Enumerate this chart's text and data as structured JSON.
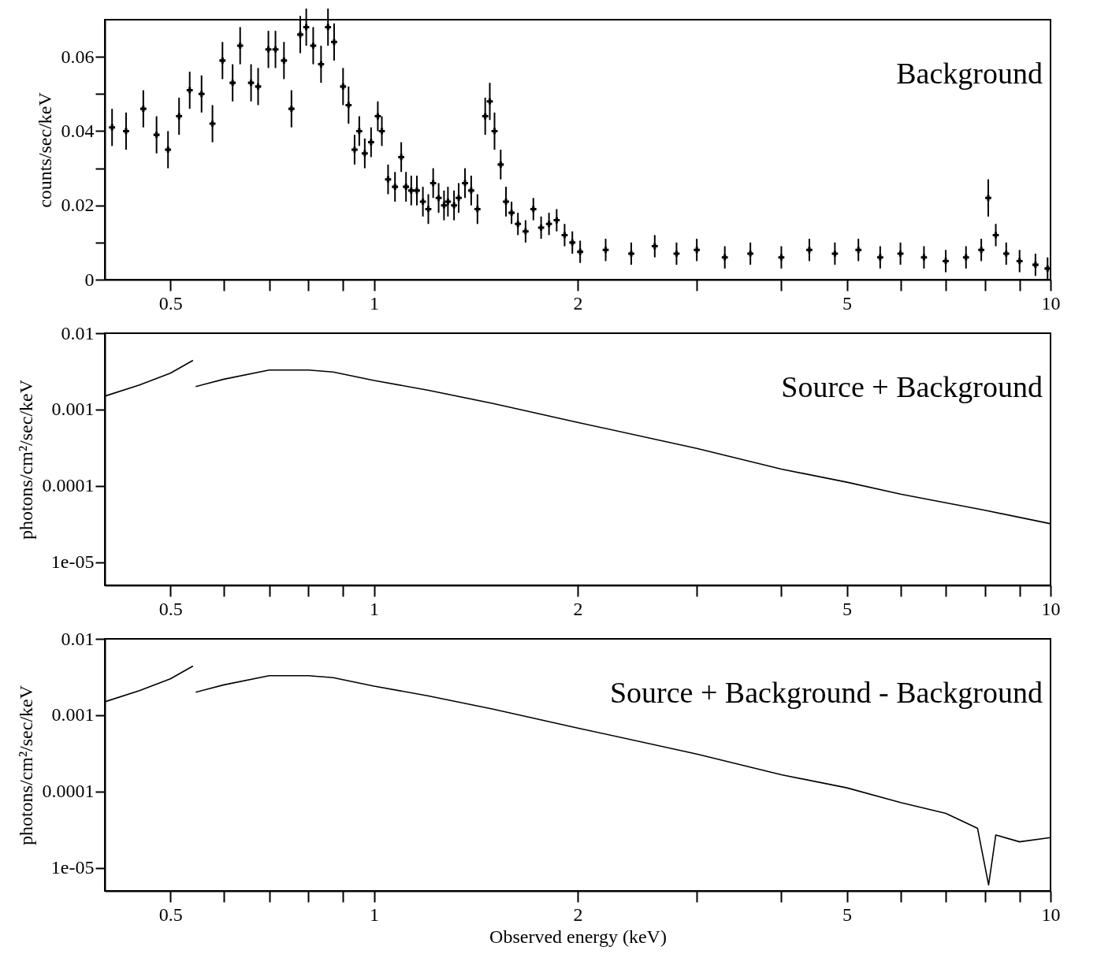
{
  "chart_data": [
    {
      "type": "scatter",
      "ylabel": "counts/sec/keV",
      "annotations": [
        "Background"
      ],
      "log": "x",
      "marker": "cross",
      "xlim": [
        0.4,
        10
      ],
      "ylim": [
        0,
        0.07
      ],
      "xticks": [
        {
          "value": 0.5,
          "label": "0.5"
        },
        {
          "value": 0.6,
          "label": null
        },
        {
          "value": 0.7,
          "label": null
        },
        {
          "value": 0.8,
          "label": null
        },
        {
          "value": 0.9,
          "label": null
        },
        1,
        2,
        {
          "value": 3,
          "label": null
        },
        {
          "value": 4,
          "label": null
        },
        5,
        {
          "value": 6,
          "label": null
        },
        {
          "value": 7,
          "label": null
        },
        {
          "value": 8,
          "label": null
        },
        {
          "value": 9,
          "label": null
        },
        10
      ],
      "yticks": [
        0,
        {
          "value": 0.01,
          "label": null
        },
        {
          "value": 0.02,
          "label": "0.02"
        },
        {
          "value": 0.03,
          "label": null
        },
        {
          "value": 0.04,
          "label": "0.04"
        },
        {
          "value": 0.05,
          "label": null
        },
        {
          "value": 0.06,
          "label": "0.06"
        }
      ],
      "series": [
        {
          "color": "#000000",
          "x": [
            0.41,
            0.43,
            0.456,
            0.477,
            0.496,
            0.515,
            0.534,
            0.556,
            0.577,
            0.597,
            0.618,
            0.634,
            0.658,
            0.674,
            0.698,
            0.715,
            0.736,
            0.755,
            0.778,
            0.794,
            0.813,
            0.835,
            0.855,
            0.873,
            0.9,
            0.917,
            0.936,
            0.951,
            0.969,
            0.99,
            1.013,
            1.027,
            1.049,
            1.074,
            1.097,
            1.115,
            1.135,
            1.157,
            1.181,
            1.203,
            1.223,
            1.246,
            1.269,
            1.286,
            1.313,
            1.334,
            1.363,
            1.392,
            1.422,
            1.46,
            1.483,
            1.507,
            1.539,
            1.567,
            1.597,
            1.632,
            1.675,
            1.72,
            1.766,
            1.814,
            1.862,
            1.913,
            1.964,
            2.017,
            2.2,
            2.4,
            2.6,
            2.8,
            3.0,
            3.3,
            3.6,
            4.0,
            4.4,
            4.8,
            5.2,
            5.6,
            6.0,
            6.5,
            7.0,
            7.5,
            7.9,
            8.09,
            8.3,
            8.6,
            9.0,
            9.5,
            9.9
          ],
          "values": [
            0.041,
            0.04,
            0.046,
            0.039,
            0.035,
            0.044,
            0.051,
            0.05,
            0.042,
            0.059,
            0.053,
            0.063,
            0.053,
            0.052,
            0.062,
            0.062,
            0.059,
            0.046,
            0.066,
            0.068,
            0.063,
            0.058,
            0.068,
            0.064,
            0.052,
            0.047,
            0.035,
            0.04,
            0.034,
            0.037,
            0.044,
            0.04,
            0.027,
            0.025,
            0.033,
            0.025,
            0.024,
            0.024,
            0.021,
            0.019,
            0.026,
            0.022,
            0.02,
            0.021,
            0.02,
            0.022,
            0.026,
            0.024,
            0.019,
            0.044,
            0.048,
            0.04,
            0.031,
            0.021,
            0.018,
            0.015,
            0.013,
            0.019,
            0.014,
            0.015,
            0.016,
            0.012,
            0.01,
            0.0075,
            0.008,
            0.007,
            0.009,
            0.007,
            0.008,
            0.006,
            0.007,
            0.006,
            0.008,
            0.007,
            0.008,
            0.006,
            0.007,
            0.006,
            0.005,
            0.006,
            0.008,
            0.022,
            0.012,
            0.007,
            0.005,
            0.004,
            0.003
          ],
          "errors": [
            0.005,
            0.005,
            0.005,
            0.005,
            0.005,
            0.005,
            0.005,
            0.005,
            0.005,
            0.005,
            0.005,
            0.005,
            0.005,
            0.005,
            0.005,
            0.005,
            0.005,
            0.005,
            0.005,
            0.005,
            0.005,
            0.005,
            0.005,
            0.005,
            0.005,
            0.005,
            0.004,
            0.004,
            0.004,
            0.004,
            0.004,
            0.004,
            0.004,
            0.004,
            0.004,
            0.004,
            0.004,
            0.004,
            0.004,
            0.004,
            0.004,
            0.004,
            0.004,
            0.004,
            0.004,
            0.004,
            0.004,
            0.004,
            0.004,
            0.005,
            0.005,
            0.005,
            0.004,
            0.004,
            0.003,
            0.003,
            0.003,
            0.003,
            0.003,
            0.003,
            0.003,
            0.003,
            0.003,
            0.003,
            0.003,
            0.003,
            0.003,
            0.003,
            0.003,
            0.003,
            0.003,
            0.003,
            0.003,
            0.003,
            0.003,
            0.003,
            0.003,
            0.003,
            0.003,
            0.003,
            0.003,
            0.005,
            0.003,
            0.003,
            0.003,
            0.003,
            0.003
          ]
        }
      ]
    },
    {
      "type": "line",
      "ylabel": "photons/cm²/sec/keV",
      "annotations": [
        "Source + Background"
      ],
      "log": "xy",
      "xlim": [
        0.4,
        10
      ],
      "ylim": [
        5e-06,
        0.01
      ],
      "xticks": [
        {
          "value": 0.5,
          "label": "0.5"
        },
        {
          "value": 0.6,
          "label": null
        },
        {
          "value": 0.7,
          "label": null
        },
        {
          "value": 0.8,
          "label": null
        },
        {
          "value": 0.9,
          "label": null
        },
        1,
        2,
        {
          "value": 3,
          "label": null
        },
        {
          "value": 4,
          "label": null
        },
        5,
        {
          "value": 6,
          "label": null
        },
        {
          "value": 7,
          "label": null
        },
        {
          "value": 8,
          "label": null
        },
        {
          "value": 9,
          "label": null
        },
        10
      ],
      "yticks": [
        {
          "value": 0.01,
          "label": "0.01"
        },
        {
          "value": 0.001,
          "label": "0.001"
        },
        {
          "value": 0.0001,
          "label": "0.0001"
        },
        {
          "value": 1e-05,
          "label": "1e-05"
        }
      ],
      "series": [
        {
          "color": "#000000",
          "x": [
            0.4,
            0.45,
            0.5,
            0.54,
            0.542,
            0.545,
            0.6,
            0.7,
            0.8,
            0.87,
            1.0,
            1.2,
            1.5,
            2.0,
            3.0,
            4.0,
            5.0,
            6.0,
            8.0,
            10
          ],
          "values": [
            0.0015,
            0.0021,
            0.003,
            0.0044,
            null,
            0.002,
            0.0025,
            0.0033,
            0.0033,
            0.0031,
            0.0024,
            0.0018,
            0.0012,
            0.00068,
            0.00031,
            0.000166,
            0.000112,
            7.8e-05,
            4.8e-05,
            3.2e-05
          ]
        }
      ]
    },
    {
      "type": "line",
      "xlabel": "Observed energy (keV)",
      "ylabel": "photons/cm²/sec/keV",
      "annotations": [
        "Source + Background - Background"
      ],
      "log": "xy",
      "xlim": [
        0.4,
        10
      ],
      "ylim": [
        5e-06,
        0.01
      ],
      "xticks": [
        {
          "value": 0.5,
          "label": "0.5"
        },
        {
          "value": 0.6,
          "label": null
        },
        {
          "value": 0.7,
          "label": null
        },
        {
          "value": 0.8,
          "label": null
        },
        {
          "value": 0.9,
          "label": null
        },
        1,
        2,
        {
          "value": 3,
          "label": null
        },
        {
          "value": 4,
          "label": null
        },
        5,
        {
          "value": 6,
          "label": null
        },
        {
          "value": 7,
          "label": null
        },
        {
          "value": 8,
          "label": null
        },
        {
          "value": 9,
          "label": null
        },
        10
      ],
      "yticks": [
        {
          "value": 0.01,
          "label": "0.01"
        },
        {
          "value": 0.001,
          "label": "0.001"
        },
        {
          "value": 0.0001,
          "label": "0.0001"
        },
        {
          "value": 1e-05,
          "label": "1e-05"
        }
      ],
      "series": [
        {
          "color": "#000000",
          "x": [
            0.4,
            0.45,
            0.5,
            0.54,
            0.542,
            0.545,
            0.6,
            0.7,
            0.8,
            0.87,
            1.0,
            1.2,
            1.5,
            2.0,
            3.0,
            4.0,
            5.0,
            6.0,
            7.0,
            7.8,
            8.1,
            8.3,
            9.0,
            10
          ],
          "values": [
            0.0015,
            0.0021,
            0.003,
            0.0044,
            null,
            0.002,
            0.0025,
            0.0033,
            0.0033,
            0.0031,
            0.0024,
            0.0018,
            0.0012,
            0.00068,
            0.00031,
            0.000166,
            0.000112,
            7.2e-05,
            5.2e-05,
            3.3e-05,
            6e-06,
            2.7e-05,
            2.2e-05,
            2.5e-05
          ]
        }
      ]
    }
  ]
}
